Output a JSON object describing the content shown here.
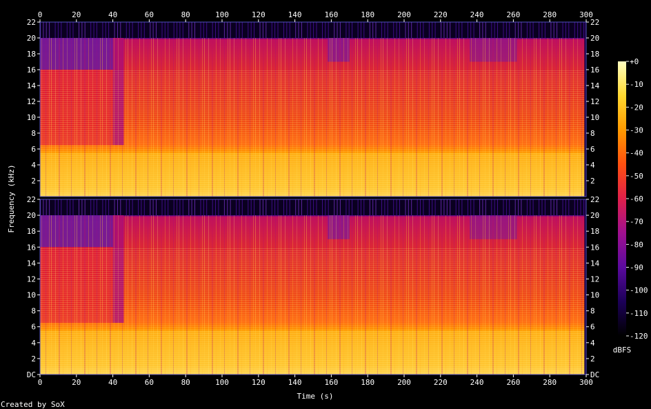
{
  "chart_data": {
    "type": "heatmap",
    "title": "",
    "xlabel": "Time (s)",
    "ylabel": "Frequency (kHz)",
    "credit": "Created by SoX",
    "x_ticks": [
      "0",
      "20",
      "40",
      "60",
      "80",
      "100",
      "120",
      "140",
      "160",
      "180",
      "200",
      "220",
      "240",
      "260",
      "280",
      "300"
    ],
    "xlim": [
      0,
      300
    ],
    "channels": [
      {
        "y_ticks": [
          "2",
          "4",
          "6",
          "8",
          "10",
          "12",
          "14",
          "16",
          "18",
          "20",
          "22"
        ],
        "ylim": [
          0,
          22
        ]
      },
      {
        "y_ticks": [
          "DC",
          "2",
          "4",
          "6",
          "8",
          "10",
          "12",
          "14",
          "16",
          "18",
          "20",
          "22"
        ],
        "ylim": [
          0,
          22
        ]
      }
    ],
    "colorbar": {
      "label": "dBFS",
      "ticks": [
        "+0",
        "-10",
        "-20",
        "-30",
        "-40",
        "-50",
        "-60",
        "-70",
        "-80",
        "-90",
        "-100",
        "-110",
        "-120"
      ],
      "range": [
        -120,
        0
      ],
      "colors": [
        "#000000",
        "#1c0058",
        "#5a0a9e",
        "#a01090",
        "#e0204a",
        "#ff5010",
        "#ff9a00",
        "#ffd830",
        "#ffffc0"
      ]
    }
  }
}
